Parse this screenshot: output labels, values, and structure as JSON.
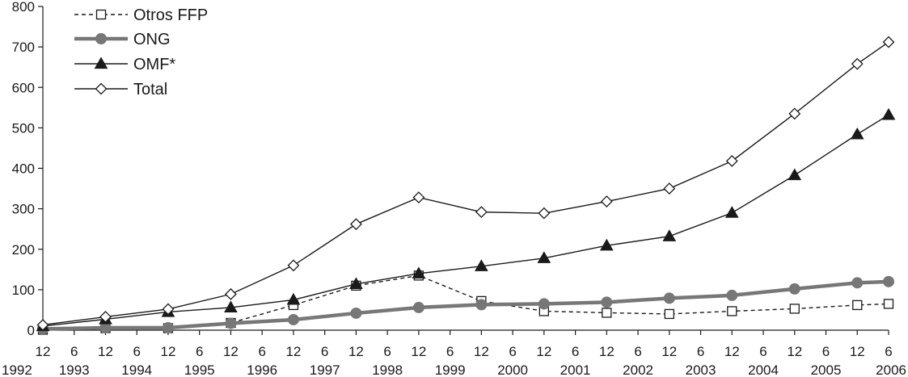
{
  "chart_data": {
    "type": "line",
    "title": "",
    "xlabel": "",
    "ylabel": "",
    "ylim": [
      0,
      800
    ],
    "y_ticks": [
      0,
      100,
      200,
      300,
      400,
      500,
      600,
      700,
      800
    ],
    "grid": false,
    "legend_position": "top-left",
    "x_ticks": [
      {
        "month": "12",
        "year": "1992"
      },
      {
        "month": "6",
        "year": "1993"
      },
      {
        "month": "12",
        "year": ""
      },
      {
        "month": "6",
        "year": "1994"
      },
      {
        "month": "12",
        "year": ""
      },
      {
        "month": "6",
        "year": "1995"
      },
      {
        "month": "12",
        "year": ""
      },
      {
        "month": "6",
        "year": "1996"
      },
      {
        "month": "12",
        "year": ""
      },
      {
        "month": "6",
        "year": "1997"
      },
      {
        "month": "12",
        "year": ""
      },
      {
        "month": "6",
        "year": "1998"
      },
      {
        "month": "12",
        "year": ""
      },
      {
        "month": "6",
        "year": "1999"
      },
      {
        "month": "12",
        "year": ""
      },
      {
        "month": "6",
        "year": "2000"
      },
      {
        "month": "12",
        "year": ""
      },
      {
        "month": "6",
        "year": "2001"
      },
      {
        "month": "12",
        "year": ""
      },
      {
        "month": "6",
        "year": "2002"
      },
      {
        "month": "12",
        "year": ""
      },
      {
        "month": "6",
        "year": "2003"
      },
      {
        "month": "12",
        "year": ""
      },
      {
        "month": "6",
        "year": "2004"
      },
      {
        "month": "12",
        "year": ""
      },
      {
        "month": "6",
        "year": "2005"
      },
      {
        "month": "12",
        "year": ""
      },
      {
        "month": "6",
        "year": "2006"
      }
    ],
    "x_points": [
      "12/1992",
      "12/1993",
      "12/1994",
      "12/1995",
      "12/1996",
      "12/1997",
      "12/1998",
      "12/1999",
      "12/2000",
      "12/2001",
      "12/2002",
      "12/2003",
      "12/2004",
      "12/2005",
      "6/2006"
    ],
    "series": [
      {
        "name": "Otros FFP",
        "marker": "square-open",
        "line": "dashed",
        "color": "#1a1a1a",
        "values": [
          1,
          5,
          5,
          18,
          62,
          110,
          135,
          72,
          47,
          43,
          40,
          47,
          53,
          62,
          65
        ]
      },
      {
        "name": "ONG",
        "marker": "circle-filled",
        "line": "thick",
        "color": "#777777",
        "values": [
          3,
          6,
          6,
          17,
          26,
          42,
          56,
          63,
          65,
          69,
          79,
          86,
          102,
          117,
          120
        ]
      },
      {
        "name": "OMF*",
        "marker": "triangle-filled",
        "line": "solid",
        "color": "#1a1a1a",
        "values": [
          10,
          27,
          45,
          56,
          75,
          114,
          140,
          158,
          178,
          209,
          232,
          290,
          383,
          484,
          532
        ]
      },
      {
        "name": "Total",
        "marker": "diamond-open",
        "line": "solid",
        "color": "#1a1a1a",
        "values": [
          13,
          33,
          52,
          89,
          160,
          262,
          328,
          292,
          289,
          318,
          350,
          418,
          535,
          658,
          712
        ]
      }
    ]
  }
}
